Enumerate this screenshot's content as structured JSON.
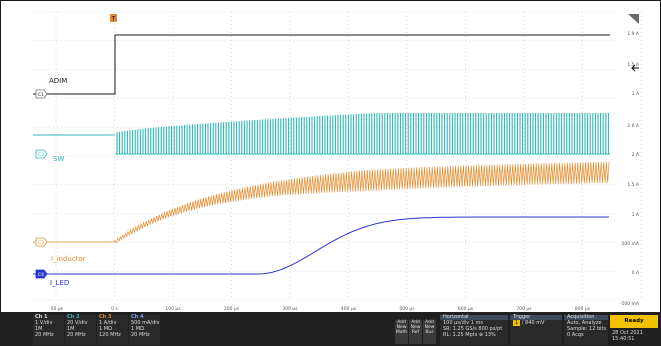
{
  "channels": [
    {
      "name": "ADIM",
      "marker": "C1",
      "color": "#1a1a1a"
    },
    {
      "name": "SW",
      "marker": "C2",
      "color": "#2fb7b7"
    },
    {
      "name": "I_inductor",
      "marker": "C3",
      "color": "#e38b2c"
    },
    {
      "name": "I_LED",
      "marker": "C4",
      "color": "#2b35c8"
    }
  ],
  "trigger_marker": "T",
  "right_scale": [
    "1.9 A",
    "1.5 A",
    "1 A",
    "2.0 A",
    "2 A",
    "1.5 A",
    "1 A",
    "500 mA",
    "0 A",
    "-500 mA"
  ],
  "time_ticks": [
    "-50 µs",
    "0 s",
    "100 µs",
    "200 µs",
    "300 µs",
    "400 µs",
    "500 µs",
    "600 µs",
    "700 µs",
    "800 µs"
  ],
  "bottom_channels": [
    {
      "title": "Ch 1",
      "lines": [
        "1 V/div",
        "1M",
        "20 MHz"
      ],
      "color": "#e0e0e0"
    },
    {
      "title": "Ch 2",
      "lines": [
        "20 V/div",
        "1M",
        "20 MHz"
      ],
      "color": "#2fb7b7"
    },
    {
      "title": "Ch 3",
      "lines": [
        "1 A/div",
        "1 MΩ",
        "120 MHz"
      ],
      "color": "#e38b2c"
    },
    {
      "title": "Ch 4",
      "lines": [
        "500 mA/div",
        "1 MΩ",
        "20 MHz"
      ],
      "color": "#7da0ff"
    }
  ],
  "add_buttons": [
    {
      "lines": [
        "Add",
        "New",
        "Math"
      ]
    },
    {
      "lines": [
        "Add",
        "New",
        "Ref"
      ]
    },
    {
      "lines": [
        "Add",
        "New",
        "Bus"
      ]
    }
  ],
  "horizontal": {
    "title": "Horizontal",
    "lines": [
      "100 µs/div    1 ms",
      "SR: 1.25 GS/s   800 ps/pt",
      "RL: 1.25 Mpts   ⊕ 13%"
    ]
  },
  "trigger": {
    "title": "Trigger",
    "source": "1",
    "lines": [
      "/   840 mV"
    ]
  },
  "acquisition": {
    "title": "Acquisition",
    "lines": [
      "Auto,          Analyze",
      "Sample: 12 bits",
      "0 Acqs"
    ]
  },
  "status": {
    "ready": "Ready",
    "date": "28 Oct 2021",
    "time": "15:40:51"
  }
}
